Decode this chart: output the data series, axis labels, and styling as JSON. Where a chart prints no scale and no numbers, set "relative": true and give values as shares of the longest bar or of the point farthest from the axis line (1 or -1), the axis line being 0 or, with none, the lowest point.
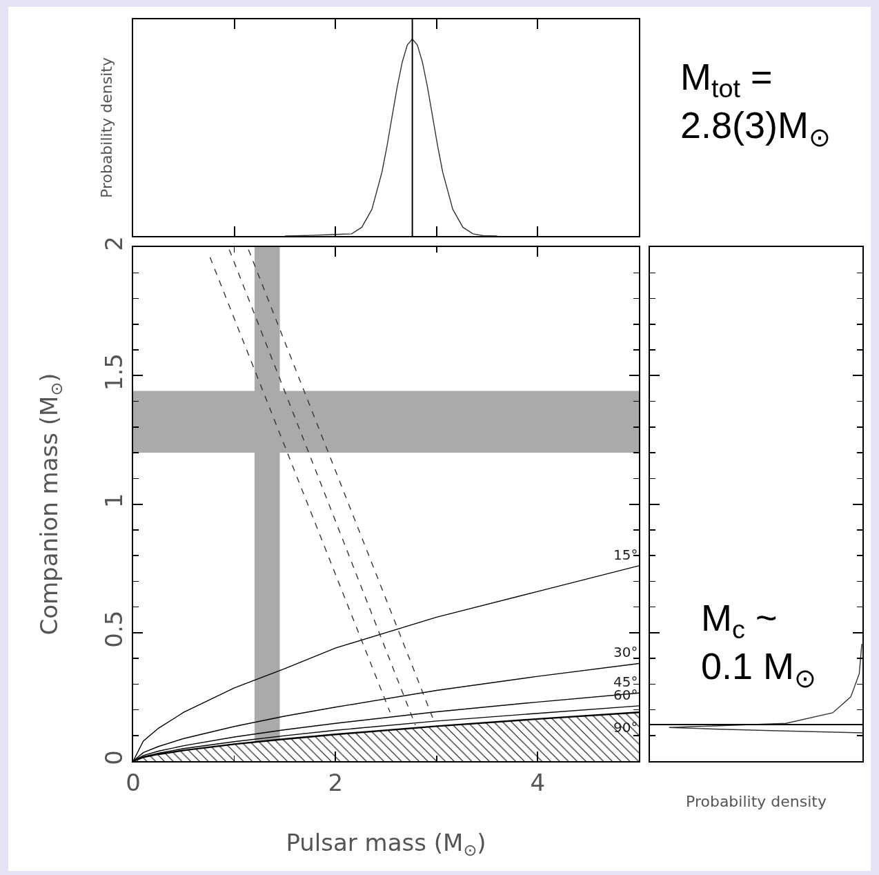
{
  "chart_data": [
    {
      "type": "line",
      "relative": true,
      "ylabel": "Probability density",
      "xlim": [
        0,
        5
      ],
      "xticks": [
        1,
        2,
        3,
        4
      ],
      "tick_labels": false,
      "legend": false,
      "grid": false,
      "x": [
        1.5,
        1.75,
        2.0,
        2.16,
        2.26,
        2.36,
        2.46,
        2.51,
        2.56,
        2.61,
        2.66,
        2.71,
        2.76,
        2.81,
        2.86,
        2.91,
        2.96,
        3.01,
        3.06,
        3.16,
        3.26,
        3.36,
        3.46,
        3.6
      ],
      "series": [
        {
          "color": "#333333",
          "values": [
            0,
            0.003,
            0.008,
            0.011,
            0.044,
            0.135,
            0.325,
            0.458,
            0.607,
            0.755,
            0.882,
            0.969,
            1,
            0.969,
            0.882,
            0.755,
            0.607,
            0.458,
            0.325,
            0.135,
            0.044,
            0.011,
            0.002,
            0
          ]
        }
      ],
      "ref_lines": [
        {
          "axis": "x",
          "value": 2.76,
          "color": "#000000"
        }
      ],
      "annotations": [
        "M$_{tot}$ =\n2.8(3)M$_{⊙}$"
      ]
    },
    {
      "type": "line",
      "xlabel": "Pulsar mass (M$_{⊙}$)",
      "ylabel": "Companion mass (M$_{⊙}$)",
      "xlim": [
        0,
        5
      ],
      "ylim": [
        0,
        2
      ],
      "grid": false,
      "legend": "right",
      "xticks": [
        0,
        {
          "value": 1,
          "label": null
        },
        2,
        {
          "value": 3,
          "label": null
        },
        4
      ],
      "yticks": [
        0,
        {
          "value": 0.1,
          "label": null
        },
        {
          "value": 0.2,
          "label": null
        },
        {
          "value": 0.3,
          "label": null
        },
        {
          "value": 0.4,
          "label": null
        },
        0.5,
        {
          "value": 0.6,
          "label": null
        },
        {
          "value": 0.7,
          "label": null
        },
        {
          "value": 0.8,
          "label": null
        },
        {
          "value": 0.9,
          "label": null
        },
        1,
        {
          "value": 1.1,
          "label": null
        },
        {
          "value": 1.2,
          "label": null
        },
        {
          "value": 1.3,
          "label": null
        },
        {
          "value": 1.4,
          "label": null
        },
        1.5,
        {
          "value": 1.6,
          "label": null
        },
        {
          "value": 1.7,
          "label": null
        },
        {
          "value": 1.8,
          "label": null
        },
        {
          "value": 1.9,
          "label": null
        },
        2
      ],
      "x": [
        0,
        0.1,
        0.25,
        0.5,
        1,
        1.5,
        2,
        3,
        4,
        5
      ],
      "series": [
        {
          "name": "15°",
          "color": "#000000",
          "values": [
            0,
            0.078,
            0.128,
            0.19,
            0.285,
            0.36,
            0.44,
            0.56,
            0.66,
            0.76
          ]
        },
        {
          "name": "30°",
          "color": "#000000",
          "values": [
            0,
            0.033,
            0.057,
            0.088,
            0.135,
            0.175,
            0.21,
            0.275,
            0.33,
            0.38
          ]
        },
        {
          "name": "45°",
          "color": "#000000",
          "values": [
            0,
            0.022,
            0.039,
            0.06,
            0.094,
            0.122,
            0.147,
            0.192,
            0.23,
            0.265
          ]
        },
        {
          "name": "60°",
          "color": "#000000",
          "values": [
            0,
            0.017,
            0.031,
            0.049,
            0.076,
            0.099,
            0.12,
            0.156,
            0.186,
            0.215
          ]
        },
        {
          "name": "90°",
          "type": "area",
          "color": "#000000",
          "values": [
            0,
            0.015,
            0.027,
            0.042,
            0.066,
            0.086,
            0.104,
            0.136,
            0.164,
            0.19
          ]
        },
        {
          "color": "#333333",
          "line_style": "dashed",
          "x": [
            0.76,
            2.54
          ],
          "values": [
            1.96,
            0.19
          ]
        },
        {
          "color": "#333333",
          "line_style": "dashed",
          "x": [
            0.95,
            2.79
          ],
          "values": [
            1.99,
            0.14
          ]
        },
        {
          "color": "#333333",
          "line_style": "dashed",
          "x": [
            1.14,
            2.97
          ],
          "values": [
            1.99,
            0.16
          ]
        }
      ],
      "bands": [
        {
          "axis": "x",
          "from": 1.2,
          "to": 1.45,
          "color": "#aaaaaa"
        },
        {
          "axis": "y",
          "from": 1.2,
          "to": 1.44,
          "color": "#aaaaaa"
        }
      ]
    },
    {
      "type": "line",
      "relative": true,
      "orientation": "horizontal",
      "xlabel": "Probability density",
      "ylim": [
        0,
        2
      ],
      "tick_labels": false,
      "legend": false,
      "grid": false,
      "yticks": [
        {
          "value": 0.1,
          "label": null
        },
        {
          "value": 0.2,
          "label": null
        },
        {
          "value": 0.3,
          "label": null
        },
        {
          "value": 0.4,
          "label": null
        },
        0.5,
        {
          "value": 0.6,
          "label": null
        },
        {
          "value": 0.7,
          "label": null
        },
        {
          "value": 0.8,
          "label": null
        },
        {
          "value": 0.9,
          "label": null
        },
        1,
        {
          "value": 1.1,
          "label": null
        },
        {
          "value": 1.2,
          "label": null
        },
        {
          "value": 1.3,
          "label": null
        },
        {
          "value": 1.4,
          "label": null
        },
        1.5,
        {
          "value": 1.6,
          "label": null
        },
        {
          "value": 1.7,
          "label": null
        },
        {
          "value": 1.8,
          "label": null
        },
        {
          "value": 1.9,
          "label": null
        }
      ],
      "series": [
        {
          "color": "#333333",
          "x": [
            0.11,
            0.118,
            0.125,
            0.131,
            0.137,
            0.147,
            0.188,
            0.25,
            0.34,
            0.456
          ],
          "values": [
            1,
            0.6,
            0.3,
            0.09,
            0.3,
            0.64,
            0.86,
            0.945,
            0.985,
            0.997
          ]
        }
      ],
      "ref_lines": [
        {
          "axis": "y",
          "value": 0.142,
          "color": "#000000"
        }
      ],
      "annotations": [
        "M$_{c}$ ~\n0.1 M$_{⊙}$"
      ]
    }
  ]
}
